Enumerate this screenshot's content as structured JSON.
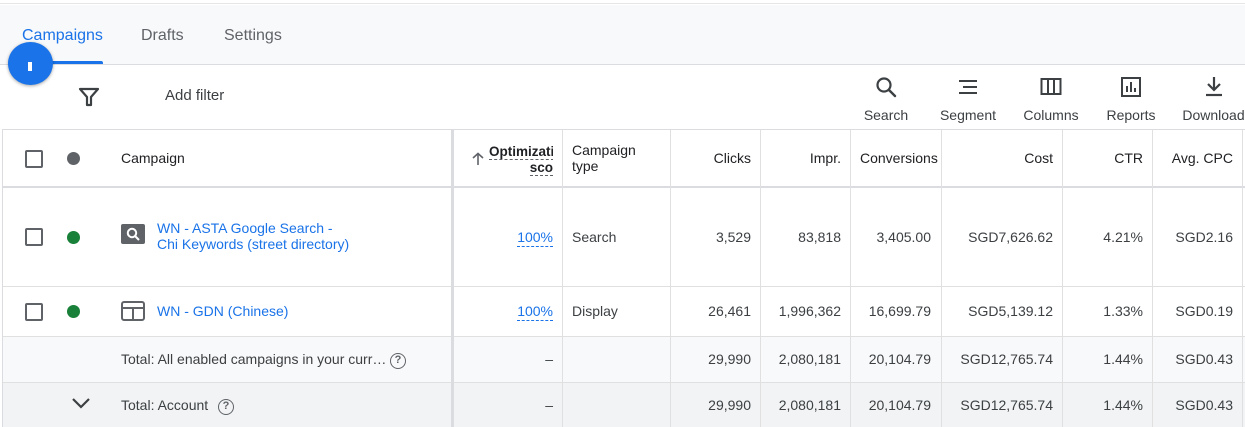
{
  "tabs": [
    {
      "label": "Campaigns",
      "active": true
    },
    {
      "label": "Drafts",
      "active": false
    },
    {
      "label": "Settings",
      "active": false
    }
  ],
  "toolbar": {
    "add_filter": "Add filter",
    "tools": [
      {
        "label": "Search",
        "icon": "search-icon"
      },
      {
        "label": "Segment",
        "icon": "segment-icon"
      },
      {
        "label": "Columns",
        "icon": "columns-icon"
      },
      {
        "label": "Reports",
        "icon": "reports-icon"
      },
      {
        "label": "Download",
        "icon": "download-icon"
      }
    ]
  },
  "table": {
    "headers": {
      "campaign": "Campaign",
      "optimization_line1": "Optimizati",
      "optimization_line2": "sco",
      "campaign_type_line1": "Campaign",
      "campaign_type_line2": "type",
      "clicks": "Clicks",
      "impr": "Impr.",
      "conversions": "Conversions",
      "cost": "Cost",
      "ctr": "CTR",
      "avg_cpc": "Avg. CPC"
    },
    "rows": [
      {
        "name_line1": "WN - ASTA Google Search -",
        "name_line2": "Chi Keywords (street directory)",
        "status_color": "#188038",
        "type_icon": "search-campaign-icon",
        "optimization": "100%",
        "campaign_type": "Search",
        "clicks": "3,529",
        "impr": "83,818",
        "conversions": "3,405.00",
        "cost": "SGD7,626.62",
        "ctr": "4.21%",
        "avg_cpc": "SGD2.16"
      },
      {
        "name_line1": "WN - GDN (Chinese)",
        "status_color": "#188038",
        "type_icon": "display-campaign-icon",
        "optimization": "100%",
        "campaign_type": "Display",
        "clicks": "26,461",
        "impr": "1,996,362",
        "conversions": "16,699.79",
        "cost": "SGD5,139.12",
        "ctr": "1.33%",
        "avg_cpc": "SGD0.19"
      }
    ],
    "totals": [
      {
        "label": "Total: All enabled campaigns in your curr…",
        "optimization": "–",
        "clicks": "29,990",
        "impr": "2,080,181",
        "conversions": "20,104.79",
        "cost": "SGD12,765.74",
        "ctr": "1.44%",
        "avg_cpc": "SGD0.43"
      },
      {
        "label": "Total: Account",
        "optimization": "–",
        "clicks": "29,990",
        "impr": "2,080,181",
        "conversions": "20,104.79",
        "cost": "SGD12,765.74",
        "ctr": "1.44%",
        "avg_cpc": "SGD0.43"
      }
    ]
  },
  "colors": {
    "accent": "#1a73e8",
    "status_enabled": "#188038",
    "status_header": "#5f6368"
  }
}
